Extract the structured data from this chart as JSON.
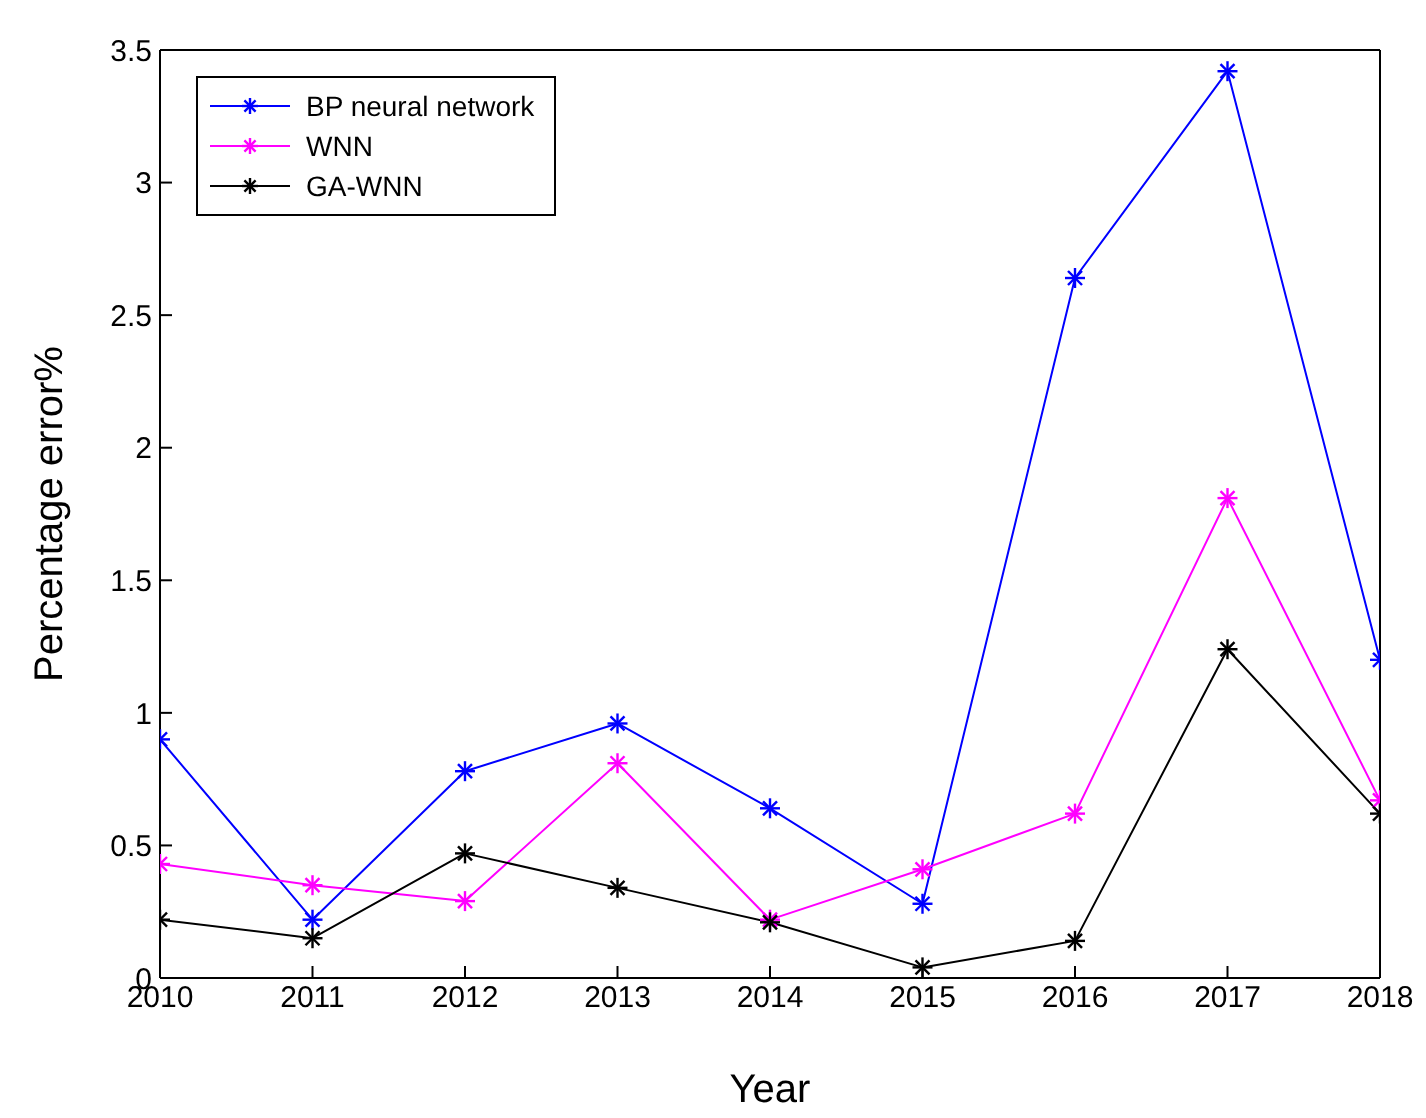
{
  "chart_data": {
    "type": "line",
    "xlabel": "Year",
    "ylabel": "Percentage error%",
    "x": [
      2010,
      2011,
      2012,
      2013,
      2014,
      2015,
      2016,
      2017,
      2018
    ],
    "series": [
      {
        "name": "BP neural network",
        "color": "#0000ff",
        "values": [
          0.9,
          0.22,
          0.78,
          0.96,
          0.64,
          0.28,
          2.64,
          3.42,
          1.2
        ]
      },
      {
        "name": "WNN",
        "color": "#ff00ff",
        "values": [
          0.43,
          0.35,
          0.29,
          0.81,
          0.22,
          0.41,
          0.62,
          1.81,
          0.67
        ]
      },
      {
        "name": "GA-WNN",
        "color": "#000000",
        "values": [
          0.22,
          0.15,
          0.47,
          0.34,
          0.21,
          0.04,
          0.14,
          1.24,
          0.62
        ]
      }
    ],
    "xlim": [
      2010,
      2018
    ],
    "xticks": [
      2010,
      2011,
      2012,
      2013,
      2014,
      2015,
      2016,
      2017,
      2018
    ],
    "ylim": [
      0,
      3.5
    ],
    "yticks": [
      0,
      0.5,
      1,
      1.5,
      2,
      2.5,
      3,
      3.5
    ],
    "grid": false,
    "legend": "top left",
    "marker": "cross",
    "line_style": "solid"
  }
}
